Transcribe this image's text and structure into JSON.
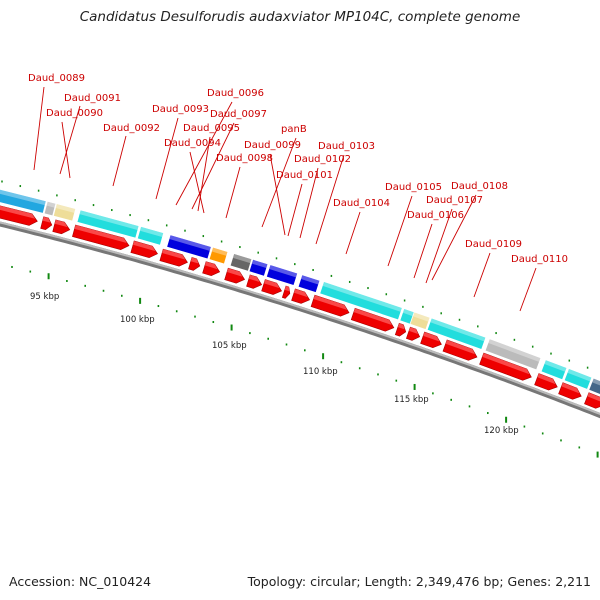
{
  "title": "Candidatus Desulforudis audaxviator MP104C, complete genome",
  "footer": {
    "accession": "Accession: NC_010424",
    "stats": "Topology: circular; Length: 2,349,476 bp; Genes: 2,211"
  },
  "colors": {
    "label": "#cc0000",
    "cds": "#ee0000",
    "backbone": "#888888",
    "tick": "#118811"
  },
  "kbp_labels": [
    "95 kbp",
    "100 kbp",
    "105 kbp",
    "110 kbp",
    "115 kbp",
    "120 kbp"
  ],
  "gene_labels": [
    "Daud_0089",
    "Daud_0091",
    "Daud_0090",
    "Daud_0092",
    "Daud_0093",
    "Daud_0096",
    "Daud_0097",
    "Daud_0095",
    "Daud_0094",
    "Daud_0098",
    "panB",
    "Daud_0099",
    "Daud_0103",
    "Daud_0102",
    "Daud_0101",
    "Daud_0104",
    "Daud_0105",
    "Daud_0108",
    "Daud_0107",
    "Daud_0106",
    "Daud_0109",
    "Daud_0110"
  ]
}
